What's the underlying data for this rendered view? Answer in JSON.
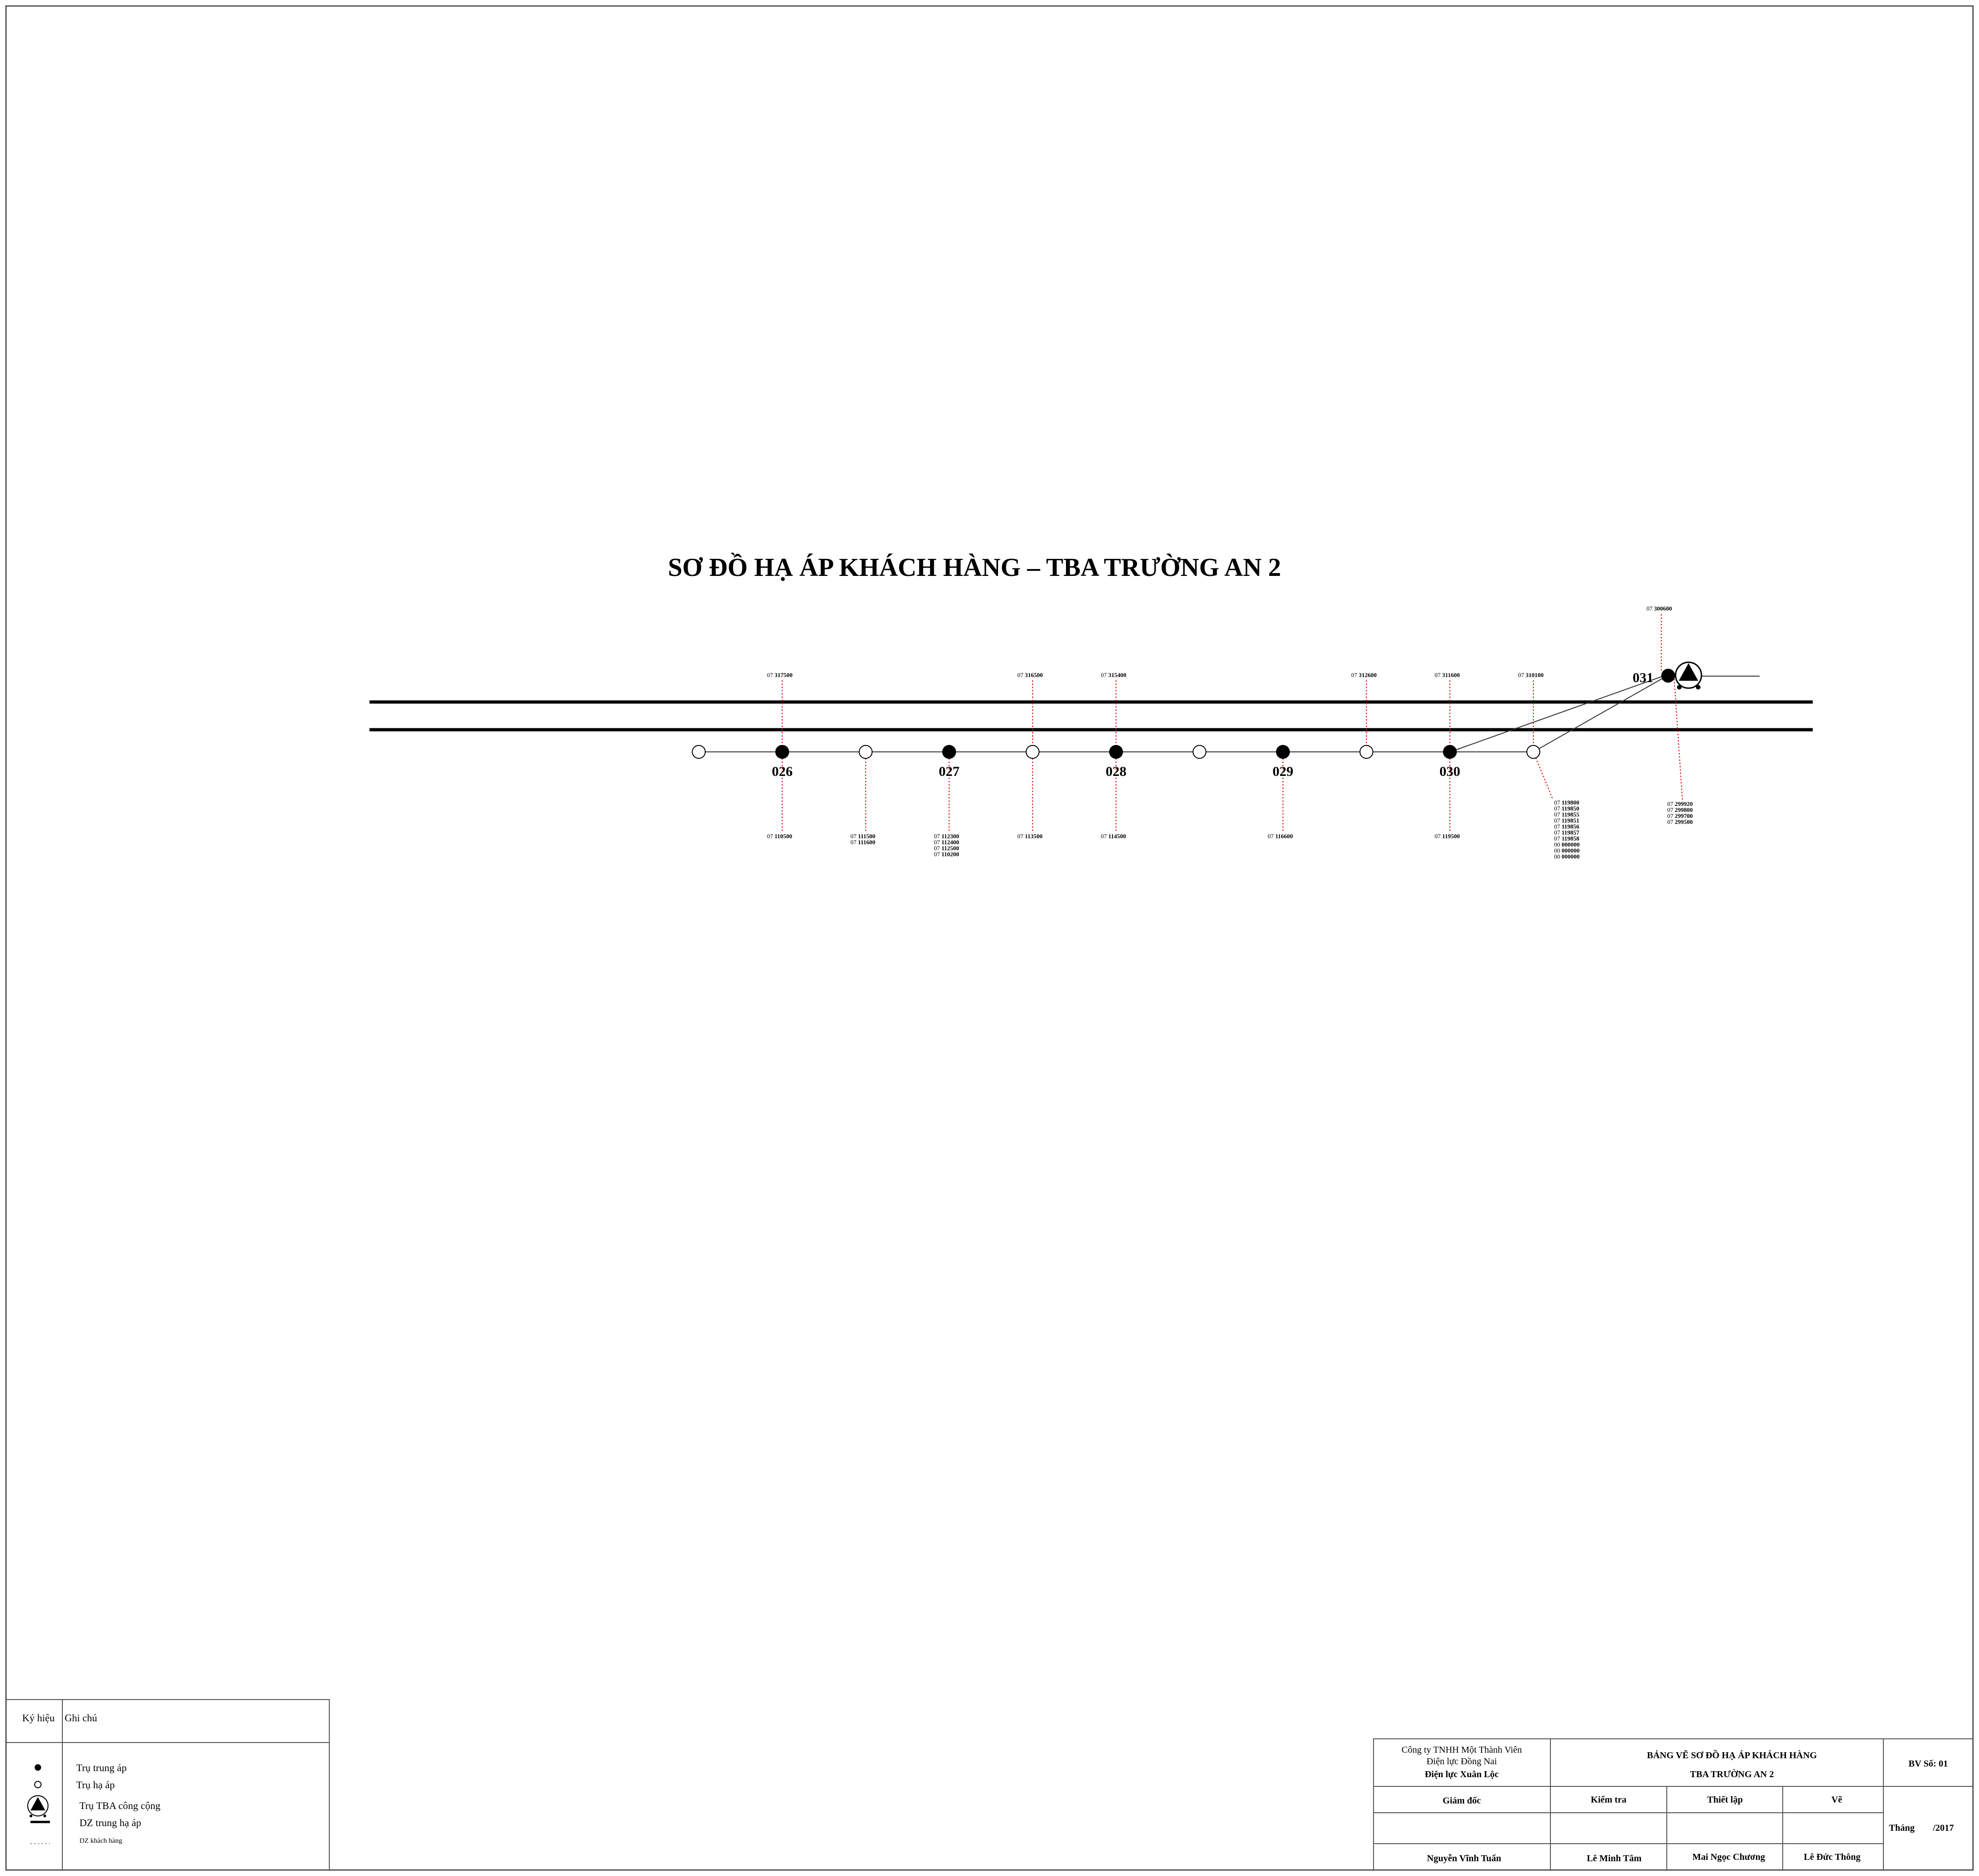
{
  "diagram": {
    "title": "SƠ ĐỒ HẠ ÁP KHÁCH HÀNG – TBA TRƯỜNG AN 2",
    "prefix": "07",
    "poles": [
      {
        "type": "low",
        "label": ""
      },
      {
        "type": "medium",
        "label": "026"
      },
      {
        "type": "low",
        "label": ""
      },
      {
        "type": "medium",
        "label": "027"
      },
      {
        "type": "low",
        "label": ""
      },
      {
        "type": "medium",
        "label": "028"
      },
      {
        "type": "low",
        "label": ""
      },
      {
        "type": "medium",
        "label": "029"
      },
      {
        "type": "low",
        "label": ""
      },
      {
        "type": "medium",
        "label": "030"
      },
      {
        "type": "low",
        "label": ""
      }
    ],
    "transformer": {
      "label": "031"
    },
    "meters_above": [
      {
        "pole": 1,
        "num": "317500"
      },
      {
        "pole": 4,
        "num": "316500"
      },
      {
        "pole": 5,
        "num": "315400"
      },
      {
        "pole": 8,
        "num": "312600"
      },
      {
        "pole": 9,
        "num": "311600"
      },
      {
        "pole": 10,
        "num": "310100"
      }
    ],
    "meters_below": [
      {
        "pole": 1,
        "nums": [
          "110500"
        ]
      },
      {
        "pole": 2,
        "nums": [
          "111500",
          "111600"
        ]
      },
      {
        "pole": 3,
        "nums": [
          "112300",
          "112400",
          "112500",
          "110200"
        ]
      },
      {
        "pole": 4,
        "nums": [
          "113500"
        ]
      },
      {
        "pole": 5,
        "nums": [
          "114500"
        ]
      },
      {
        "pole": 7,
        "nums": [
          "116600"
        ]
      },
      {
        "pole": 9,
        "nums": [
          "119500"
        ]
      }
    ],
    "meters_pole_10_list": {
      "items": [
        {
          "pre": "07",
          "num": "119800"
        },
        {
          "pre": "07",
          "num": "119850"
        },
        {
          "pre": "07",
          "num": "119855"
        },
        {
          "pre": "07",
          "num": "119851"
        },
        {
          "pre": "07",
          "num": "119856"
        },
        {
          "pre": "07",
          "num": "119857"
        },
        {
          "pre": "07",
          "num": "119858"
        },
        {
          "pre": "00",
          "num": "000000"
        },
        {
          "pre": "00",
          "num": "000000"
        },
        {
          "pre": "00",
          "num": "000000"
        }
      ]
    },
    "meters_transformer_top": {
      "num": "300600"
    },
    "meters_transformer_below": [
      "299920",
      "299800",
      "299700",
      "299500"
    ]
  },
  "legend": {
    "header_symbol": "Ký hiệu",
    "header_note": "Ghi chú",
    "items": [
      {
        "icon": "filled-circle-icon",
        "text": "Trụ trung áp"
      },
      {
        "icon": "hollow-circle-icon",
        "text": "Trụ hạ áp"
      },
      {
        "icon": "transformer-icon",
        "text": "Trụ TBA công cộng"
      },
      {
        "icon": "thick-line-icon",
        "text": "DZ trung hạ áp"
      },
      {
        "icon": "dotted-line-icon",
        "text": "DZ khách hàng"
      }
    ]
  },
  "title_block": {
    "company_line1": "Công ty TNHH Một Thành Viên",
    "company_line2": "Điện lực Đồng Nai",
    "company_line3": "Điện lực Xuân Lộc",
    "drawing_title1": "BẢNG VẼ SƠ ĐỒ HẠ ÁP KHÁCH HÀNG",
    "drawing_title2": "TBA TRƯỜNG AN 2",
    "sheet_no": "BV Số: 01",
    "roles": [
      "Giám đốc",
      "Kiểm tra",
      "Thiết lập",
      "Vẽ"
    ],
    "names": [
      "Nguyễn Vĩnh Tuấn",
      "Lê Minh Tâm",
      "Mai Ngọc Chương",
      "Lê Đức Thông"
    ],
    "month_label": "Tháng",
    "year": "/2017"
  },
  "colors": {
    "line": "#000000",
    "customer_line": "#e00000",
    "border": "#555555"
  }
}
